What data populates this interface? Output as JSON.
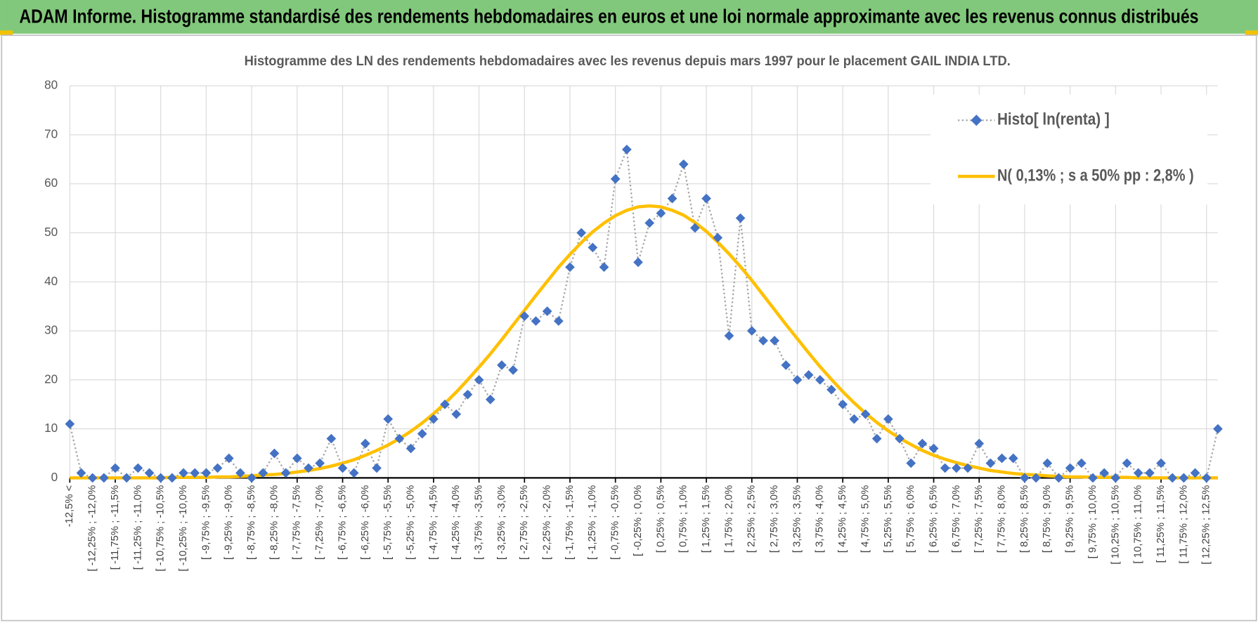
{
  "header": {
    "title": "ADAM Informe. Histogramme standardisé des rendements hebdomadaires en euros et une loi normale approximante avec les revenus connus distribués"
  },
  "chart_data": {
    "type": "line",
    "title": "Histogramme des LN des rendements hebdomadaires avec les revenus depuis mars 1997 pour le placement GAIL INDIA LTD.",
    "categories": [
      "-12,5% <",
      null,
      "[ -12,25% ; -12,0%",
      null,
      "[ -11,75% ; -11,5%",
      null,
      "[ -11,25% ; -11,0%",
      null,
      "[ -10,75% ; -10,5%",
      null,
      "[ -10,25% ; -10,0%",
      null,
      "[ -9,75% ; -9,5%",
      null,
      "[ -9,25% ; -9,0%",
      null,
      "[ -8,75% ; -8,5%",
      null,
      "[ -8,25% ; -8,0%",
      null,
      "[ -7,75% ; -7,5%",
      null,
      "[ -7,25% ; -7,0%",
      null,
      "[ -6,75% ; -6,5%",
      null,
      "[ -6,25% ; -6,0%",
      null,
      "[ -5,75% ; -5,5%",
      null,
      "[ -5,25% ; -5,0%",
      null,
      "[ -4,75% ; -4,5%",
      null,
      "[ -4,25% ; -4,0%",
      null,
      "[ -3,75% ; -3,5%",
      null,
      "[ -3,25% ; -3,0%",
      null,
      "[ -2,75% ; -2,5%",
      null,
      "[ -2,25% ; -2,0%",
      null,
      "[ -1,75% ; -1,5%",
      null,
      "[ -1,25% ; -1,0%",
      null,
      "[ -0,75% ; -0,5%",
      null,
      "[ -0,25% ; 0,0%",
      null,
      "[ 0,25% ; 0,5%",
      null,
      "[ 0,75% ; 1,0%",
      null,
      "[ 1,25% ; 1,5%",
      null,
      "[ 1,75% ; 2,0%",
      null,
      "[ 2,25% ; 2,5%",
      null,
      "[ 2,75% ; 3,0%",
      null,
      "[ 3,25% ; 3,5%",
      null,
      "[ 3,75% ; 4,0%",
      null,
      "[ 4,25% ; 4,5%",
      null,
      "[ 4,75% ; 5,0%",
      null,
      "[ 5,25% ; 5,5%",
      null,
      "[ 5,75% ; 6,0%",
      null,
      "[ 6,25% ; 6,5%",
      null,
      "[ 6,75% ; 7,0%",
      null,
      "[ 7,25% ; 7,5%",
      null,
      "[ 7,75% ; 8,0%",
      null,
      "[ 8,25% ; 8,5%",
      null,
      "[ 8,75% ; 9,0%",
      null,
      "[ 9,25% ; 9,5%",
      null,
      "[ 9,75% ; 10,0%",
      null,
      "[ 10,25% ; 10,5%",
      null,
      "[ 10,75% ; 11,0%",
      null,
      "[ 11,25% ; 11,5%",
      null,
      "[ 11,75% ; 12,0%",
      null,
      "[ 12,25% ; 12,5%",
      null
    ],
    "series": [
      {
        "name": "Histo[ ln(renta) ]",
        "color": "#4472c4",
        "line_color": "#a6a6a6",
        "marker": "diamond",
        "line_style": "dotted",
        "values": [
          11,
          1,
          0,
          0,
          2,
          0,
          2,
          1,
          0,
          0,
          1,
          1,
          1,
          2,
          4,
          1,
          0,
          1,
          5,
          1,
          4,
          2,
          3,
          8,
          2,
          1,
          7,
          2,
          12,
          8,
          6,
          9,
          12,
          15,
          13,
          17,
          20,
          16,
          23,
          22,
          33,
          32,
          34,
          32,
          43,
          50,
          47,
          43,
          61,
          67,
          44,
          52,
          54,
          57,
          64,
          51,
          57,
          49,
          29,
          53,
          30,
          28,
          28,
          23,
          20,
          21,
          20,
          18,
          15,
          12,
          13,
          8,
          12,
          8,
          3,
          7,
          6,
          2,
          2,
          2,
          7,
          3,
          4,
          4,
          0,
          0,
          3,
          0,
          2,
          3,
          0,
          1,
          0,
          3,
          1,
          1,
          3,
          0,
          0,
          1,
          0,
          10
        ]
      },
      {
        "name": "N( 0,13% ; s a 50% pp : 2,8% )",
        "color": "#ffc000",
        "line_style": "solid",
        "values": [
          0,
          0,
          0,
          0,
          0,
          0,
          0,
          0,
          0,
          0.1,
          0.1,
          0.1,
          0.1,
          0.2,
          0.2,
          0.3,
          0.4,
          0.6,
          0.7,
          0.9,
          1.2,
          1.5,
          1.9,
          2.4,
          3.0,
          3.7,
          4.6,
          5.6,
          6.7,
          8.0,
          9.5,
          11.2,
          13.1,
          15.2,
          17.5,
          20.0,
          22.6,
          25.3,
          28.2,
          31.2,
          34.2,
          37.2,
          40.1,
          43.0,
          45.6,
          48.0,
          50.2,
          52.0,
          53.5,
          54.6,
          55.3,
          55.5,
          55.3,
          54.6,
          53.6,
          52.1,
          50.3,
          48.1,
          45.7,
          43.1,
          40.3,
          37.3,
          34.3,
          31.3,
          28.4,
          25.5,
          22.7,
          20.1,
          17.6,
          15.3,
          13.2,
          11.3,
          9.6,
          8.1,
          6.8,
          5.6,
          4.6,
          3.8,
          3.1,
          2.5,
          2.0,
          1.5,
          1.2,
          0.9,
          0.7,
          0.6,
          0.4,
          0.3,
          0.2,
          0.2,
          0.1,
          0.1,
          0.1,
          0.1,
          0,
          0,
          0,
          0,
          0,
          0,
          0,
          0
        ]
      }
    ],
    "ylim": [
      0,
      80
    ],
    "yticks": [
      0,
      10,
      20,
      30,
      40,
      50,
      60,
      70,
      80
    ],
    "grid": true,
    "legend": "top-right"
  }
}
